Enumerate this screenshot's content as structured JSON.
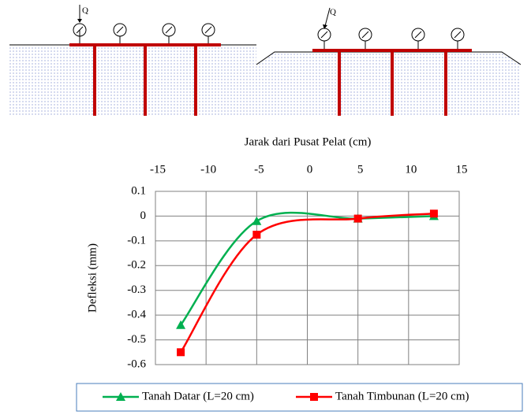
{
  "diagram_labels": [
    "Q",
    "Q"
  ],
  "chart_data": {
    "type": "line",
    "title": "Jarak dari Pusat Pelat (cm)",
    "y_label": "Defleksi (mm)",
    "x": [
      -12.5,
      -5,
      5,
      12.5
    ],
    "series": [
      {
        "name": "Tanah Datar (L=20 cm)",
        "color": "#00b050",
        "marker": "triangle",
        "values": [
          -0.44,
          -0.02,
          -0.01,
          0.0
        ]
      },
      {
        "name": "Tanah Timbunan (L=20 cm)",
        "color": "#ff0000",
        "marker": "square",
        "values": [
          -0.55,
          -0.075,
          -0.01,
          0.01
        ]
      }
    ],
    "xlim": [
      -15,
      15
    ],
    "xticks": [
      -15,
      -10,
      -5,
      0,
      5,
      10,
      15
    ],
    "ylim": [
      -0.6,
      0.1
    ],
    "yticks": [
      0.1,
      0,
      -0.1,
      -0.2,
      -0.3,
      -0.4,
      -0.5,
      -0.6
    ],
    "grid": true,
    "smooth": true,
    "legend": "bottom"
  }
}
